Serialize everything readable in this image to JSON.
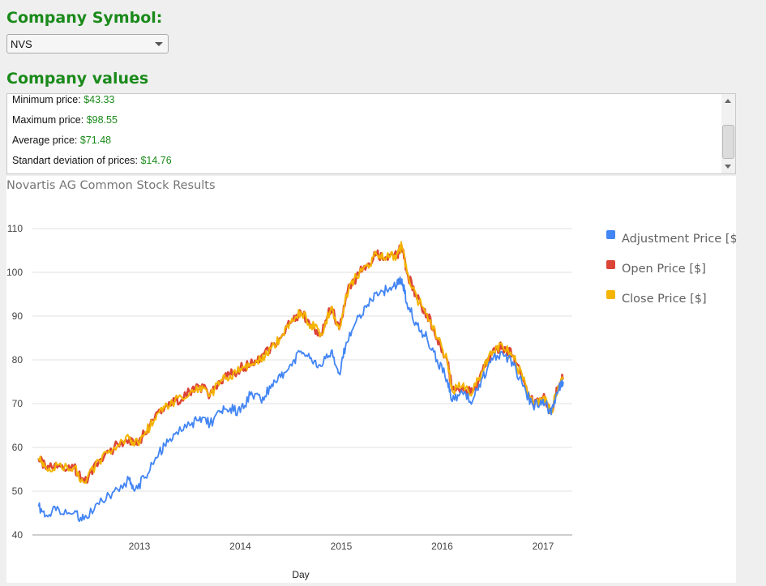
{
  "symbol_heading": "Company Symbol:",
  "symbol_select": {
    "selected": "NVS"
  },
  "values_heading": "Company values",
  "values": [
    {
      "label": "Minimum price: ",
      "value": "$43.33"
    },
    {
      "label": "Maximum price: ",
      "value": "$98.55"
    },
    {
      "label": "Average price: ",
      "value": "$71.48"
    },
    {
      "label": "Standart deviation of prices: ",
      "value": "$14.76"
    }
  ],
  "colors": {
    "heading": "#1a8a1a",
    "adjustment": "#4285f4",
    "open": "#db4437",
    "close": "#f4b400"
  },
  "chart_data": {
    "type": "line",
    "title": "Novartis AG Common Stock Results",
    "xlabel": "Day",
    "ylabel": "",
    "x_ticks": [
      "2013",
      "2014",
      "2015",
      "2016",
      "2017"
    ],
    "xlim": [
      2012.0,
      2017.3
    ],
    "ylim": [
      40,
      110
    ],
    "y_ticks": [
      40,
      50,
      60,
      70,
      80,
      90,
      100,
      110
    ],
    "grid": true,
    "legend_position": "right",
    "series": [
      {
        "name": "Adjustment Price [$]",
        "color": "#4285f4",
        "points": [
          [
            2012.0,
            46.5
          ],
          [
            2012.08,
            44.5
          ],
          [
            2012.2,
            46.0
          ],
          [
            2012.35,
            45.0
          ],
          [
            2012.45,
            43.5
          ],
          [
            2012.6,
            47.0
          ],
          [
            2012.75,
            50.0
          ],
          [
            2012.9,
            52.5
          ],
          [
            2012.95,
            50.0
          ],
          [
            2013.05,
            53.0
          ],
          [
            2013.15,
            57.0
          ],
          [
            2013.25,
            60.5
          ],
          [
            2013.35,
            63.0
          ],
          [
            2013.5,
            65.0
          ],
          [
            2013.6,
            67.0
          ],
          [
            2013.7,
            65.5
          ],
          [
            2013.8,
            68.0
          ],
          [
            2013.9,
            69.0
          ],
          [
            2014.0,
            68.0
          ],
          [
            2014.1,
            72.0
          ],
          [
            2014.2,
            71.0
          ],
          [
            2014.3,
            73.5
          ],
          [
            2014.4,
            76.0
          ],
          [
            2014.5,
            79.0
          ],
          [
            2014.6,
            82.0
          ],
          [
            2014.7,
            80.5
          ],
          [
            2014.8,
            78.5
          ],
          [
            2014.9,
            82.0
          ],
          [
            2014.98,
            77.0
          ],
          [
            2015.05,
            84.0
          ],
          [
            2015.15,
            89.0
          ],
          [
            2015.25,
            92.0
          ],
          [
            2015.35,
            95.5
          ],
          [
            2015.45,
            96.0
          ],
          [
            2015.55,
            97.0
          ],
          [
            2015.6,
            98.5
          ],
          [
            2015.65,
            93.0
          ],
          [
            2015.75,
            88.0
          ],
          [
            2015.85,
            85.0
          ],
          [
            2015.95,
            80.0
          ],
          [
            2016.05,
            75.5
          ],
          [
            2016.1,
            70.5
          ],
          [
            2016.2,
            72.5
          ],
          [
            2016.3,
            70.5
          ],
          [
            2016.4,
            76.0
          ],
          [
            2016.5,
            80.0
          ],
          [
            2016.6,
            81.5
          ],
          [
            2016.7,
            79.5
          ],
          [
            2016.8,
            74.0
          ],
          [
            2016.9,
            69.5
          ],
          [
            2017.0,
            71.0
          ],
          [
            2017.08,
            67.5
          ],
          [
            2017.15,
            73.0
          ],
          [
            2017.2,
            75.0
          ]
        ]
      },
      {
        "name": "Open Price [$]",
        "color": "#db4437",
        "points": [
          [
            2012.0,
            57.5
          ],
          [
            2012.08,
            55.0
          ],
          [
            2012.2,
            56.0
          ],
          [
            2012.35,
            55.5
          ],
          [
            2012.45,
            52.0
          ],
          [
            2012.6,
            57.0
          ],
          [
            2012.75,
            60.0
          ],
          [
            2012.9,
            62.0
          ],
          [
            2012.95,
            60.5
          ],
          [
            2013.05,
            63.0
          ],
          [
            2013.15,
            66.5
          ],
          [
            2013.25,
            69.0
          ],
          [
            2013.35,
            70.5
          ],
          [
            2013.5,
            72.5
          ],
          [
            2013.6,
            74.0
          ],
          [
            2013.7,
            72.0
          ],
          [
            2013.8,
            75.0
          ],
          [
            2013.9,
            76.5
          ],
          [
            2014.0,
            78.0
          ],
          [
            2014.1,
            79.0
          ],
          [
            2014.2,
            80.0
          ],
          [
            2014.3,
            82.5
          ],
          [
            2014.4,
            85.0
          ],
          [
            2014.5,
            88.5
          ],
          [
            2014.6,
            91.0
          ],
          [
            2014.7,
            88.0
          ],
          [
            2014.8,
            86.0
          ],
          [
            2014.9,
            92.0
          ],
          [
            2014.98,
            87.0
          ],
          [
            2015.05,
            95.0
          ],
          [
            2015.15,
            99.0
          ],
          [
            2015.25,
            101.5
          ],
          [
            2015.35,
            104.0
          ],
          [
            2015.45,
            103.5
          ],
          [
            2015.55,
            104.0
          ],
          [
            2015.6,
            106.0
          ],
          [
            2015.65,
            100.0
          ],
          [
            2015.75,
            94.0
          ],
          [
            2015.85,
            90.5
          ],
          [
            2015.95,
            85.0
          ],
          [
            2016.05,
            80.0
          ],
          [
            2016.1,
            73.0
          ],
          [
            2016.2,
            74.0
          ],
          [
            2016.3,
            72.5
          ],
          [
            2016.4,
            77.5
          ],
          [
            2016.5,
            82.0
          ],
          [
            2016.6,
            83.0
          ],
          [
            2016.7,
            81.0
          ],
          [
            2016.8,
            75.5
          ],
          [
            2016.9,
            70.0
          ],
          [
            2017.0,
            71.5
          ],
          [
            2017.08,
            68.0
          ],
          [
            2017.15,
            74.0
          ],
          [
            2017.2,
            76.0
          ]
        ]
      },
      {
        "name": "Close Price [$]",
        "color": "#f4b400",
        "points": [
          [
            2012.0,
            57.5
          ],
          [
            2012.08,
            55.0
          ],
          [
            2012.2,
            56.0
          ],
          [
            2012.35,
            55.5
          ],
          [
            2012.45,
            52.0
          ],
          [
            2012.6,
            57.0
          ],
          [
            2012.75,
            60.0
          ],
          [
            2012.9,
            62.0
          ],
          [
            2012.95,
            60.5
          ],
          [
            2013.05,
            63.0
          ],
          [
            2013.15,
            66.5
          ],
          [
            2013.25,
            69.0
          ],
          [
            2013.35,
            70.5
          ],
          [
            2013.5,
            72.5
          ],
          [
            2013.6,
            74.0
          ],
          [
            2013.7,
            72.0
          ],
          [
            2013.8,
            75.0
          ],
          [
            2013.9,
            76.5
          ],
          [
            2014.0,
            78.0
          ],
          [
            2014.1,
            79.0
          ],
          [
            2014.2,
            80.0
          ],
          [
            2014.3,
            82.5
          ],
          [
            2014.4,
            85.0
          ],
          [
            2014.5,
            88.5
          ],
          [
            2014.6,
            91.0
          ],
          [
            2014.7,
            88.0
          ],
          [
            2014.8,
            86.0
          ],
          [
            2014.9,
            92.0
          ],
          [
            2014.98,
            87.0
          ],
          [
            2015.05,
            95.0
          ],
          [
            2015.15,
            99.0
          ],
          [
            2015.25,
            101.5
          ],
          [
            2015.35,
            104.0
          ],
          [
            2015.45,
            103.5
          ],
          [
            2015.55,
            104.0
          ],
          [
            2015.6,
            106.0
          ],
          [
            2015.65,
            100.0
          ],
          [
            2015.75,
            94.0
          ],
          [
            2015.85,
            90.5
          ],
          [
            2015.95,
            85.0
          ],
          [
            2016.05,
            80.0
          ],
          [
            2016.1,
            73.0
          ],
          [
            2016.2,
            74.0
          ],
          [
            2016.3,
            72.5
          ],
          [
            2016.4,
            77.5
          ],
          [
            2016.5,
            82.0
          ],
          [
            2016.6,
            83.0
          ],
          [
            2016.7,
            81.0
          ],
          [
            2016.8,
            75.5
          ],
          [
            2016.9,
            70.0
          ],
          [
            2017.0,
            71.5
          ],
          [
            2017.08,
            68.0
          ],
          [
            2017.15,
            74.0
          ],
          [
            2017.2,
            76.0
          ]
        ]
      }
    ]
  }
}
